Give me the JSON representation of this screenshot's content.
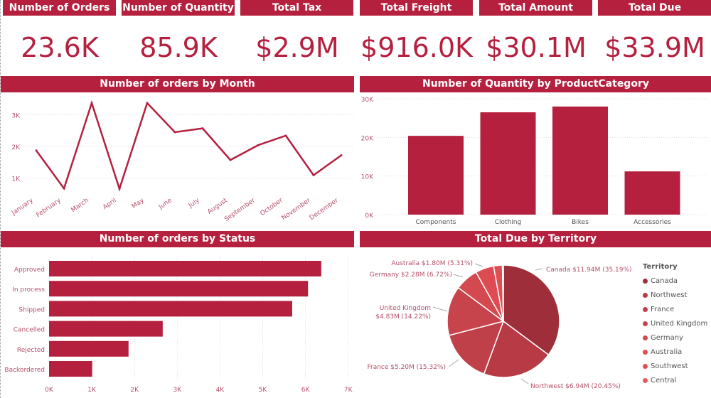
{
  "kpis": [
    {
      "label": "Number of Orders",
      "value": "23.6K"
    },
    {
      "label": "Number of Quantity",
      "value": "85.9K"
    },
    {
      "label": "Total Tax",
      "value": "$2.9M"
    },
    {
      "label": "Total Freight",
      "value": "$916.0K"
    },
    {
      "label": "Total Amount",
      "value": "$30.1M"
    },
    {
      "label": "Total Due",
      "value": "$33.9M"
    }
  ],
  "colors": {
    "accent": "#b5203f"
  },
  "chart_data": [
    {
      "type": "line",
      "title": "Number of orders by Month",
      "categories": [
        "January",
        "February",
        "March",
        "April",
        "May",
        "June",
        "July",
        "August",
        "September",
        "October",
        "November",
        "December"
      ],
      "values": [
        1870,
        670,
        3370,
        660,
        3370,
        2450,
        2570,
        1570,
        2040,
        2340,
        1090,
        1720
      ],
      "yticks": [
        "1K",
        "2K",
        "3K"
      ],
      "ylim": [
        0,
        3500
      ],
      "grid": true
    },
    {
      "type": "bar",
      "title": "Number of Quantity by ProductCategory",
      "categories": [
        "Components",
        "Clothing",
        "Bikes",
        "Accessories"
      ],
      "values": [
        20400,
        26500,
        28000,
        11200
      ],
      "yticks": [
        "0K",
        "10K",
        "20K",
        "30K"
      ],
      "ylim": [
        0,
        30000
      ],
      "grid": true
    },
    {
      "type": "bar",
      "orientation": "horizontal",
      "title": "Number of orders by Status",
      "categories": [
        "Approved",
        "In process",
        "Shipped",
        "Cancelled",
        "Rejected",
        "Backordered"
      ],
      "values": [
        6370,
        6060,
        5690,
        2660,
        1860,
        1010
      ],
      "xticks": [
        "0K",
        "1K",
        "2K",
        "3K",
        "4K",
        "5K",
        "6K",
        "7K"
      ],
      "xlim": [
        0,
        7000
      ],
      "grid": true
    },
    {
      "type": "pie",
      "title": "Total Due by Territory",
      "legend_title": "Territory",
      "legend": "right",
      "slices": [
        {
          "name": "Canada",
          "value": 11.94,
          "label": "Canada $11.94M (35.19%)",
          "color": "#9e2f3a"
        },
        {
          "name": "Northwest",
          "value": 6.94,
          "label": "Northwest $6.94M (20.45%)",
          "color": "#b83a45"
        },
        {
          "name": "France",
          "value": 5.2,
          "label": "France $5.20M (15.32%)",
          "color": "#c0404a"
        },
        {
          "name": "United Kingdom",
          "value": 4.83,
          "label_line1": "United Kingdom",
          "label_line2": "$4.83M (14.22%)",
          "color": "#c8444c"
        },
        {
          "name": "Germany",
          "value": 2.28,
          "label": "Germany $2.28M (6.72%)",
          "color": "#d4484f"
        },
        {
          "name": "Australia",
          "value": 1.8,
          "label": "Australia $1.80M (5.31%)",
          "color": "#dc4c52"
        },
        {
          "name": "Southwest",
          "value": 0.85,
          "color": "#e04e53"
        },
        {
          "name": "Central",
          "value": 0.1,
          "color": "#e85a5a"
        }
      ]
    }
  ]
}
